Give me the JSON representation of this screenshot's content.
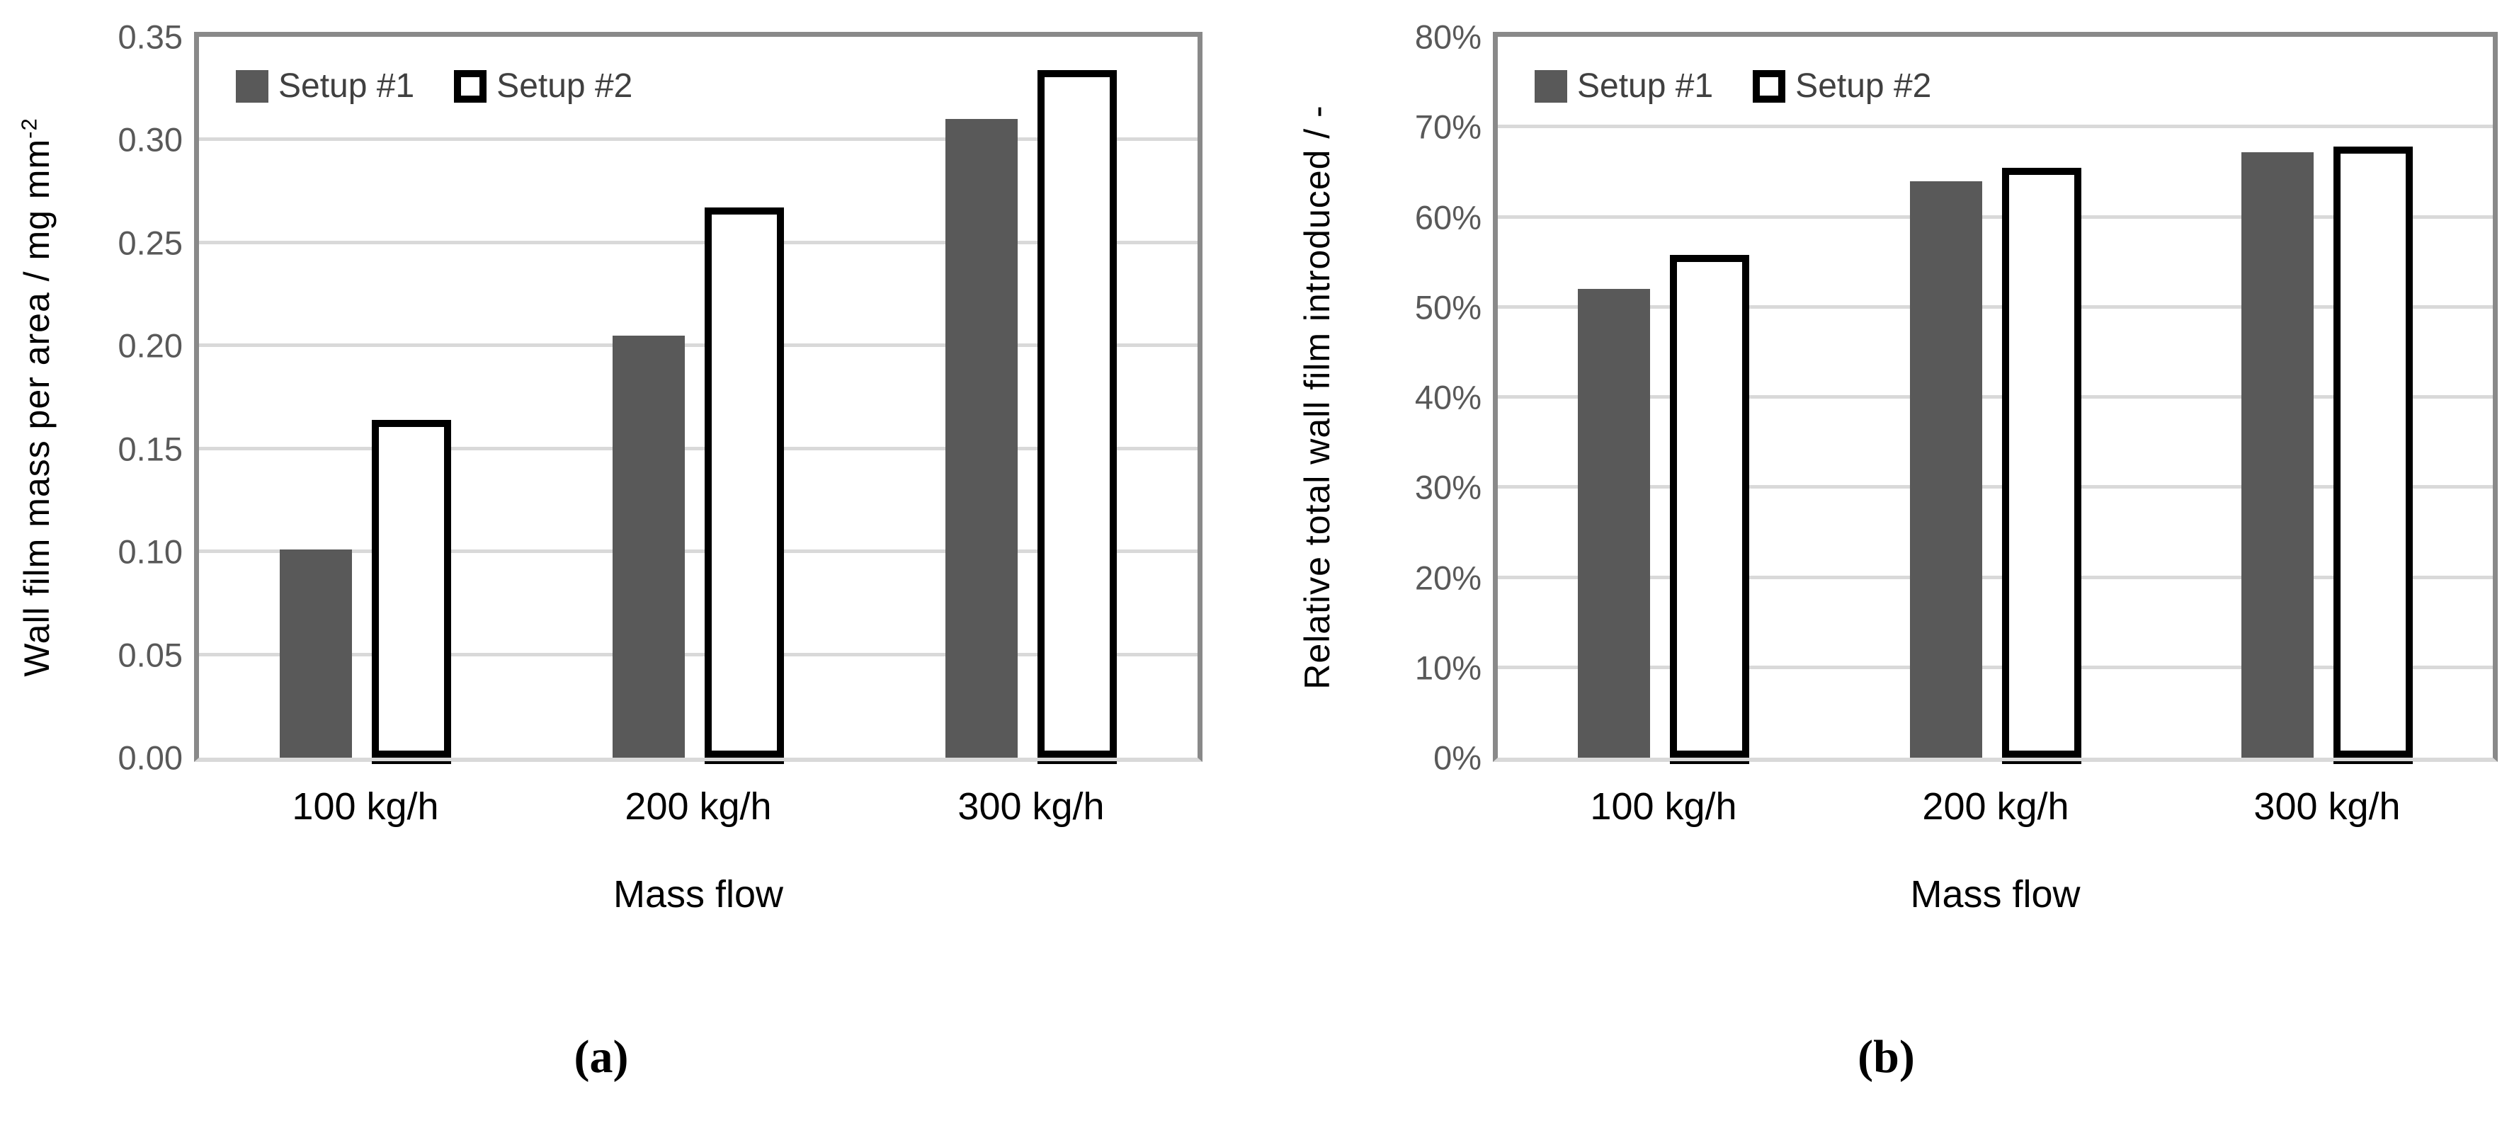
{
  "colors": {
    "setup1_fill": "#595959",
    "setup2_fill": "#ffffff",
    "setup2_border": "#000000",
    "gridline": "#d9d9d9",
    "plot_border": "#898989",
    "baseline": "#d9d9d9",
    "ytick_text": "#595959",
    "axis_text": "#000000",
    "legend_text": "#404040"
  },
  "chart_data": [
    {
      "id": "a",
      "type": "bar",
      "panel_label": "(a)",
      "title": "",
      "ylabel": "Wall film mass per area / mg mm^-2",
      "ylabel_main": "Wall film mass per area  / mg mm",
      "ylabel_sup": "-2",
      "xlabel": "Mass flow",
      "categories": [
        "100 kg/h",
        "200 kg/h",
        "300 kg/h"
      ],
      "series": [
        {
          "name": "Setup #1",
          "values": [
            0.101,
            0.205,
            0.31
          ]
        },
        {
          "name": "Setup #2",
          "values": [
            0.164,
            0.267,
            0.334
          ]
        }
      ],
      "ylim": [
        0,
        0.35
      ],
      "ytick_step": 0.05,
      "ytick_labels": [
        "0.00",
        "0.05",
        "0.10",
        "0.15",
        "0.20",
        "0.25",
        "0.30",
        "0.35"
      ],
      "grid": true,
      "legend_position": "top-left-inside"
    },
    {
      "id": "b",
      "type": "bar",
      "panel_label": "(b)",
      "title": "",
      "ylabel": "Relative total wall film introduced / -",
      "ylabel_main": "Relative total wall film introduced / -",
      "ylabel_sup": "",
      "xlabel": "Mass flow",
      "categories": [
        "100 kg/h",
        "200 kg/h",
        "300 kg/h"
      ],
      "series": [
        {
          "name": "Setup #1",
          "values": [
            0.52,
            0.64,
            0.672
          ]
        },
        {
          "name": "Setup #2",
          "values": [
            0.558,
            0.655,
            0.678
          ]
        }
      ],
      "ylim": [
        0,
        0.8
      ],
      "ytick_step": 0.1,
      "ytick_labels": [
        "0%",
        "10%",
        "20%",
        "30%",
        "40%",
        "50%",
        "60%",
        "70%",
        "80%"
      ],
      "grid": true,
      "legend_position": "top-left-inside"
    }
  ]
}
